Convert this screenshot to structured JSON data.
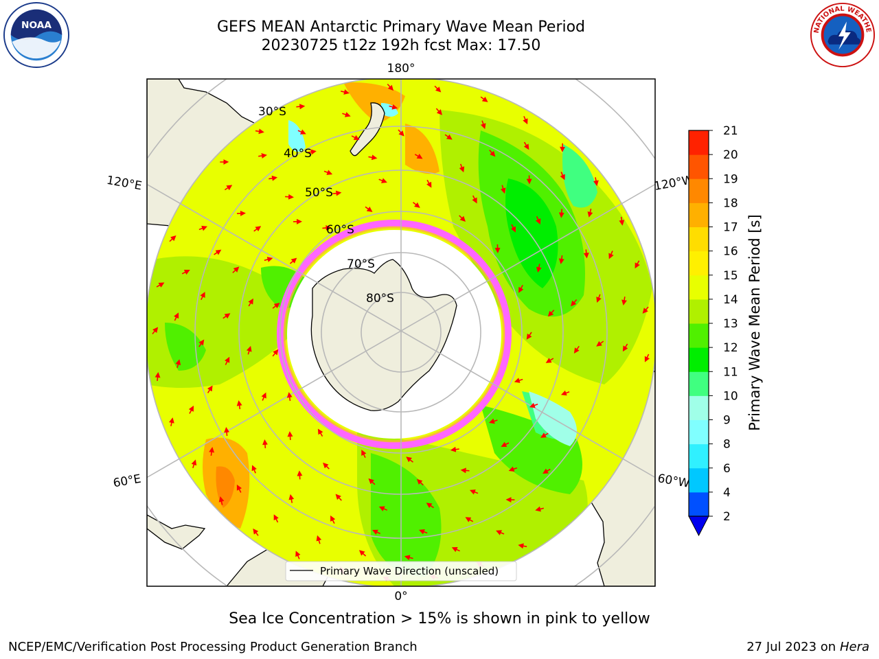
{
  "header": {
    "title_line1": "GEFS MEAN Antarctic Primary Wave Mean Period",
    "title_line2": "20230725 t12z 192h fcst   Max: 17.50"
  },
  "logos": {
    "left": "noaa-logo",
    "right": "national-weather-service-logo"
  },
  "map": {
    "projection": "south-polar-stereographic",
    "lon_labels": {
      "top": "180°",
      "bottom": "0°",
      "upper_left": "120°E",
      "upper_right": "120°W",
      "lower_left": "60°E",
      "lower_right": "60°W"
    },
    "lat_labels": [
      "30°S",
      "40°S",
      "50°S",
      "60°S",
      "70°S",
      "80°S"
    ],
    "legend_text": "Primary Wave Direction (unscaled)"
  },
  "colorbar": {
    "label": "Primary Wave Mean Period [s]",
    "ticks": [
      "2",
      "4",
      "6",
      "8",
      "9",
      "10",
      "11",
      "12",
      "13",
      "14",
      "15",
      "16",
      "17",
      "18",
      "19",
      "20",
      "21"
    ],
    "colors": [
      "#0050ff",
      "#00c8ff",
      "#30f0ff",
      "#80ffff",
      "#a0ffe8",
      "#40ff80",
      "#00ee00",
      "#50f000",
      "#b0f000",
      "#e8ff00",
      "#fff000",
      "#ffdd00",
      "#ffb000",
      "#ff8800",
      "#ff5500",
      "#ff2200"
    ],
    "extend_color": "#0000ee"
  },
  "caption": "Sea Ice Concentration > 15% is shown in pink to yellow",
  "footer": {
    "left": "NCEP/EMC/Verification Post Processing Product Generation Branch",
    "right_date": "27 Jul 2023 on",
    "right_host": "Hera"
  },
  "colors": {
    "land": "#efeedd",
    "arrow": "#ff0000",
    "grid": "#b8b8b8",
    "sea_ice": "#ff44ff"
  }
}
